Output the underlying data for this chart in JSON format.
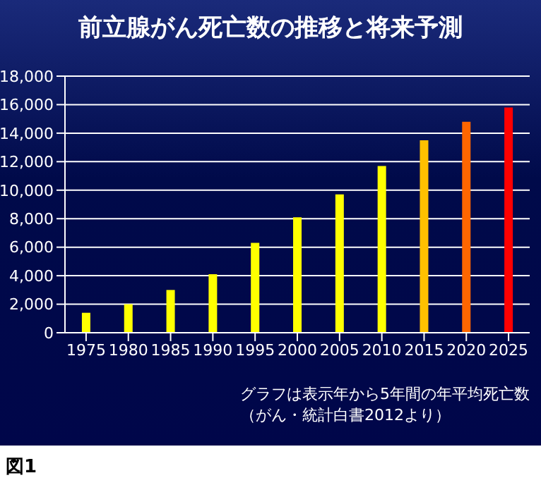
{
  "chart_data": {
    "type": "bar",
    "title": "前立腺がん死亡数の推移と将来予測",
    "categories": [
      "1975",
      "1980",
      "1985",
      "1990",
      "1995",
      "2000",
      "2005",
      "2010",
      "2015",
      "2020",
      "2025"
    ],
    "values": [
      1400,
      2000,
      3000,
      4100,
      6300,
      8100,
      9700,
      11700,
      13500,
      14800,
      15800
    ],
    "colors": [
      "#ffff00",
      "#ffff00",
      "#ffff00",
      "#ffff00",
      "#ffff00",
      "#ffff00",
      "#ffff00",
      "#ffff00",
      "#ffc000",
      "#ff6600",
      "#ff0000"
    ],
    "ylim": [
      0,
      18000
    ],
    "yticks": [
      {
        "value": 0,
        "label": "0"
      },
      {
        "value": 2000,
        "label": "2,000"
      },
      {
        "value": 4000,
        "label": "4,000"
      },
      {
        "value": 6000,
        "label": "6,000"
      },
      {
        "value": 8000,
        "label": "8,000"
      },
      {
        "value": 10000,
        "label": "10,000"
      },
      {
        "value": 12000,
        "label": "12,000"
      },
      {
        "value": 14000,
        "label": "14,000"
      },
      {
        "value": 16000,
        "label": "16,000"
      },
      {
        "value": 18000,
        "label": "18,000"
      }
    ],
    "grid": "y",
    "annotations": [
      "グラフは表示年から5年間の年平均死亡数",
      "（がん・統計白書2012より）",
      "図1"
    ]
  }
}
